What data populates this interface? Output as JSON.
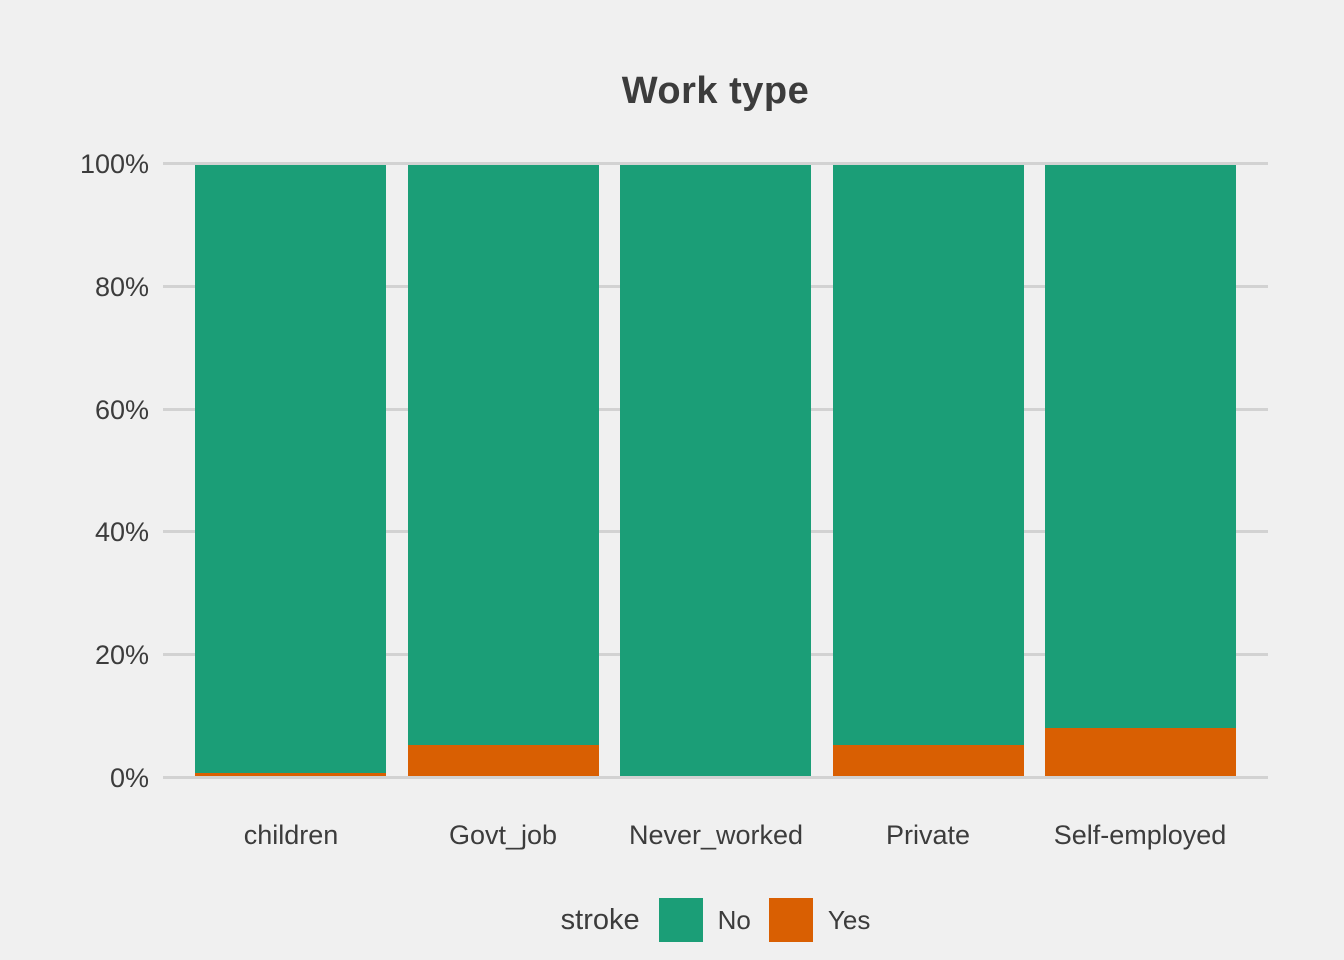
{
  "title": "Work type",
  "legend": {
    "title": "stroke",
    "entries": [
      {
        "label": "No",
        "color": "#1B9E77"
      },
      {
        "label": "Yes",
        "color": "#D95F02"
      }
    ]
  },
  "chart_data": {
    "type": "bar",
    "variant": "100%-stacked-column",
    "title": "Work type",
    "categories": [
      "children",
      "Govt_job",
      "Never_worked",
      "Private",
      "Self-employed"
    ],
    "series": [
      {
        "name": "No",
        "color": "#1B9E77",
        "values": [
          99.5,
          95.0,
          100.0,
          94.9,
          92.1
        ]
      },
      {
        "name": "Yes",
        "color": "#D95F02",
        "values": [
          0.5,
          5.0,
          0.0,
          5.1,
          7.9
        ]
      }
    ],
    "xlabel": "",
    "ylabel": "",
    "ylim": [
      0,
      100
    ],
    "y_ticks": [
      {
        "value": 100,
        "label": "100%"
      },
      {
        "value": 80,
        "label": "80%"
      },
      {
        "value": 60,
        "label": "60%"
      },
      {
        "value": 40,
        "label": "40%"
      },
      {
        "value": 20,
        "label": "20%"
      },
      {
        "value": 0,
        "label": "0%"
      }
    ],
    "grid": "horizontal-major-only",
    "legend_title": "stroke",
    "legend_position": "bottom-center",
    "colors": {
      "background": "#F0F0F0",
      "gridline": "#D2D2D2",
      "text": "#3C3C3C"
    }
  }
}
